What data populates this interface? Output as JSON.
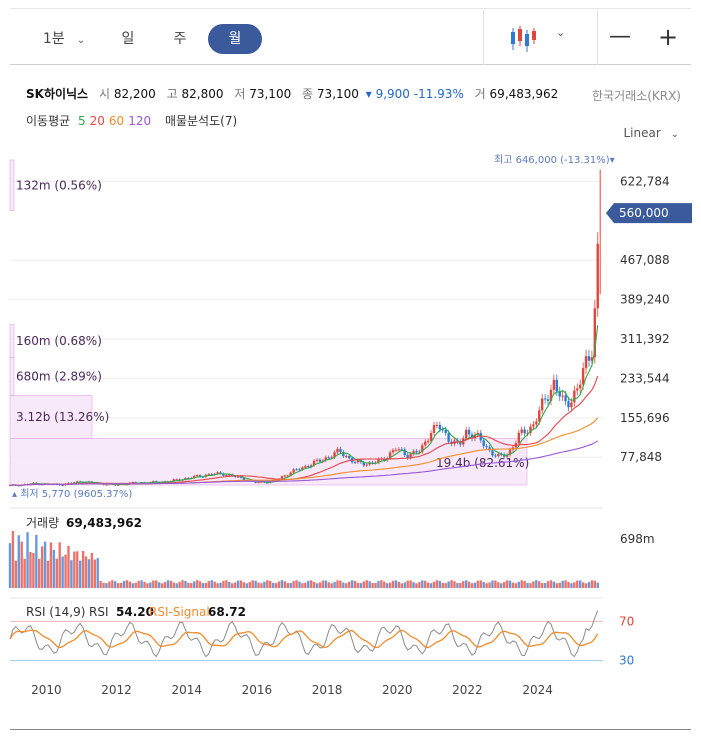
{
  "toolbar": {
    "minute_label": "1분",
    "day_label": "일",
    "week_label": "주",
    "month_label": "월",
    "zoom_out": "—",
    "zoom_in": "+",
    "chevron": "⌄"
  },
  "quote": {
    "name": "SK하이닉스",
    "open_label": "시",
    "open": "82,200",
    "high_label": "고",
    "high": "82,800",
    "low_label": "저",
    "low": "73,100",
    "close_label": "종",
    "close": "73,100",
    "change": "▾ 9,900 -11.93%",
    "volume_label": "거",
    "volume": "69,483,962",
    "exchange": "한국거래소(KRX)"
  },
  "ma_legend": {
    "label": "이동평균",
    "p5": "5",
    "p20": "20",
    "p60": "60",
    "p120": "120",
    "vp": "매물분석도(7)"
  },
  "colors": {
    "accent": "#3a5a9c",
    "up": "#e0463b",
    "down": "#2f7ad3",
    "ma5": "#2faa4a",
    "ma20": "#e8454a",
    "ma60": "#f08c2c",
    "ma120": "#9a58d8",
    "vp_fill": "#f6e6f8",
    "vp_stroke": "#d99ae0",
    "rsi": "#8c8c8c",
    "rsi_signal": "#f08c2c"
  },
  "scale_label": "Linear",
  "chart_data": [
    {
      "type": "candlestick",
      "title": "SK하이닉스 월봉",
      "x_axis": {
        "ticks": [
          "2010",
          "2012",
          "2014",
          "2016",
          "2018",
          "2020",
          "2022",
          "2024"
        ],
        "range": [
          2009.0,
          2025.9
        ]
      },
      "y_axis": {
        "ticks": [
          77848,
          155696,
          233544,
          311392,
          389240,
          467088,
          622784
        ],
        "range": [
          23000,
          665000
        ],
        "scale": "linear"
      },
      "current_price_label": "560,000",
      "high_annotation": "최고 646,000 (-13.31%)▾",
      "low_annotation": "▴ 최저 5,770 (9605.37%)",
      "price_path": [
        [
          2009.0,
          22000
        ],
        [
          2009.3,
          23000
        ],
        [
          2009.6,
          26000
        ],
        [
          2010.0,
          25000
        ],
        [
          2010.5,
          24000
        ],
        [
          2011.0,
          30000
        ],
        [
          2011.5,
          26000
        ],
        [
          2012.0,
          23000
        ],
        [
          2012.5,
          27000
        ],
        [
          2013.0,
          28000
        ],
        [
          2013.5,
          30000
        ],
        [
          2014.0,
          36000
        ],
        [
          2014.5,
          42000
        ],
        [
          2015.0,
          46000
        ],
        [
          2015.5,
          38000
        ],
        [
          2016.0,
          28000
        ],
        [
          2016.5,
          30000
        ],
        [
          2017.0,
          48000
        ],
        [
          2017.5,
          62000
        ],
        [
          2018.0,
          76000
        ],
        [
          2018.4,
          90000
        ],
        [
          2018.8,
          68000
        ],
        [
          2019.2,
          65000
        ],
        [
          2019.6,
          72000
        ],
        [
          2020.0,
          95000
        ],
        [
          2020.3,
          82000
        ],
        [
          2020.7,
          90000
        ],
        [
          2021.0,
          130000
        ],
        [
          2021.2,
          140000
        ],
        [
          2021.5,
          115000
        ],
        [
          2021.8,
          100000
        ],
        [
          2022.0,
          128000
        ],
        [
          2022.3,
          120000
        ],
        [
          2022.6,
          95000
        ],
        [
          2022.9,
          78000
        ],
        [
          2023.2,
          85000
        ],
        [
          2023.5,
          120000
        ],
        [
          2023.9,
          140000
        ],
        [
          2024.2,
          185000
        ],
        [
          2024.5,
          225000
        ],
        [
          2024.8,
          180000
        ],
        [
          2025.0,
          195000
        ],
        [
          2025.2,
          215000
        ],
        [
          2025.4,
          260000
        ],
        [
          2025.6,
          300000
        ],
        [
          2025.7,
          400000
        ],
        [
          2025.8,
          560000
        ]
      ],
      "volume_profile": [
        {
          "label": "132m (0.56%)",
          "price_range": [
            565000,
            665000
          ],
          "share_pct": 0.56
        },
        {
          "label": "160m (0.68%)",
          "price_range": [
            275000,
            340000
          ],
          "share_pct": 0.68
        },
        {
          "label": "680m (2.89%)",
          "price_range": [
            200000,
            275000
          ],
          "share_pct": 2.89
        },
        {
          "label": "3.12b (13.26%)",
          "price_range": [
            115000,
            200000
          ],
          "share_pct": 13.26
        },
        {
          "label": "19.4b (82.61%)",
          "price_range": [
            23000,
            115000
          ],
          "share_pct": 82.61
        }
      ],
      "moving_averages": [
        "5",
        "20",
        "60",
        "120"
      ]
    },
    {
      "type": "bar",
      "title": "거래량",
      "last_value": "69,483,962",
      "y_tick": "698m",
      "pattern": "high volume 2009–2011, low and flat afterwards"
    },
    {
      "type": "line",
      "title": "RSI (14,9)",
      "series": [
        {
          "name": "RSI",
          "last": "54.20"
        },
        {
          "name": "RSI-Signal",
          "last": "68.72"
        }
      ],
      "levels": [
        "70",
        "30"
      ]
    }
  ],
  "volume_panel": {
    "title": "거래량",
    "value": "69,483,962",
    "tick": "698m"
  },
  "rsi_panel": {
    "title": "RSI (14,9)",
    "rsi_label": "RSI",
    "rsi_value": "54.20",
    "signal_label": "RSI-Signal",
    "signal_value": "68.72",
    "level_70": "70",
    "level_30": "30"
  }
}
